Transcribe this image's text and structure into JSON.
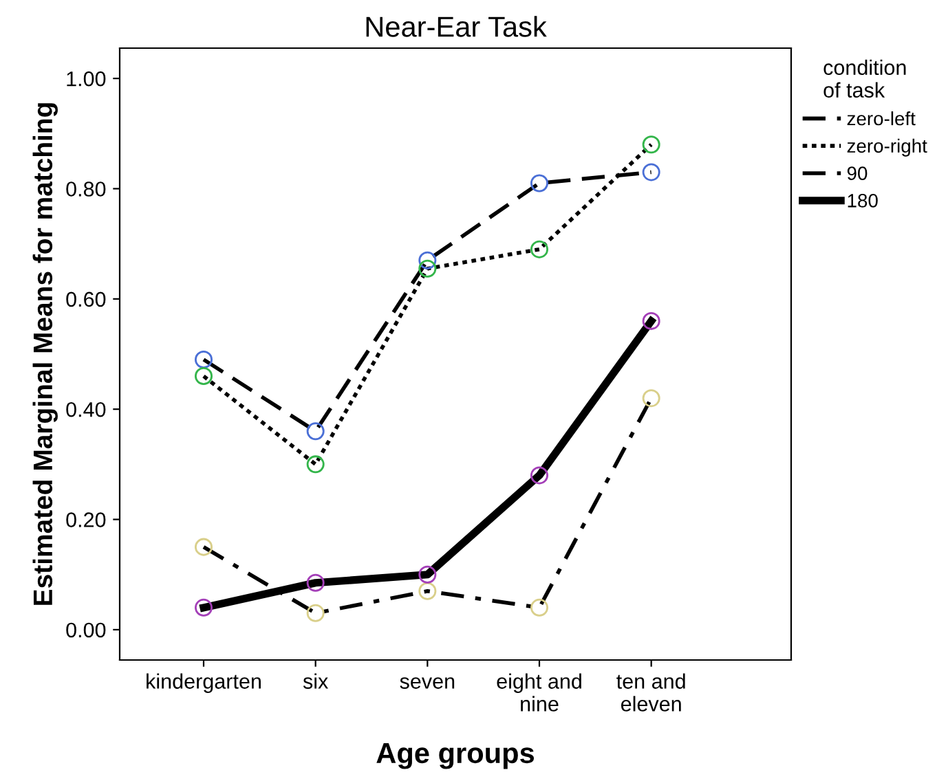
{
  "chart_data": {
    "type": "line",
    "title": "Near-Ear Task",
    "xlabel": "Age groups",
    "ylabel": "Estimated Marginal Means for matching",
    "legend_title": "condition\nof task",
    "legend": "right",
    "marker": "circle",
    "grid": false,
    "categories": [
      "kindergarten",
      "six",
      "seven",
      "eight and\nnine",
      "ten and\neleven"
    ],
    "ylim": [
      -0.055,
      1.055
    ],
    "yticks": [
      {
        "value": 0,
        "label": "0.00"
      },
      {
        "value": 0.2,
        "label": "0.20"
      },
      {
        "value": 0.4,
        "label": "0.40"
      },
      {
        "value": 0.6,
        "label": "0.60"
      },
      {
        "value": 0.8,
        "label": "0.80"
      },
      {
        "value": 1,
        "label": "1.00"
      }
    ],
    "series": [
      {
        "name": "zero-left",
        "color": "#000000",
        "colors": [
          "#4a6fd6",
          "#4a6fd6",
          "#4a6fd6",
          "#4a6fd6",
          "#4a6fd6"
        ],
        "line_style": "dashed",
        "values": [
          0.49,
          0.36,
          0.67,
          0.81,
          0.83
        ]
      },
      {
        "name": "zero-right",
        "color": "#000000",
        "colors": [
          "#33b54a",
          "#33b54a",
          "#33b54a",
          "#33b54a",
          "#33b54a"
        ],
        "line_style": "dotted",
        "values": [
          0.46,
          0.3,
          0.655,
          0.69,
          0.88
        ]
      },
      {
        "name": "90",
        "color": "#000000",
        "colors": [
          "#d9cf8a",
          "#d9cf8a",
          "#d9cf8a",
          "#d9cf8a",
          "#d9cf8a"
        ],
        "line_style": "dashdot",
        "values": [
          0.15,
          0.03,
          0.07,
          0.04,
          0.42
        ]
      },
      {
        "name": "180",
        "color": "#000000",
        "colors": [
          "#a43fb8",
          "#a43fb8",
          "#a43fb8",
          "#a43fb8",
          "#a43fb8"
        ],
        "line_style": "solid",
        "values": [
          0.04,
          0.085,
          0.1,
          0.28,
          0.56
        ]
      }
    ]
  }
}
